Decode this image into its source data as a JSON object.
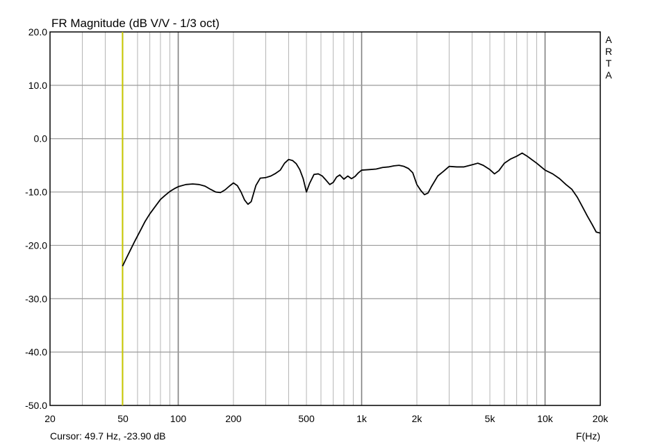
{
  "chart_data": {
    "type": "line",
    "title": "FR Magnitude (dB V/V - 1/3 oct)",
    "brand": "ARTA",
    "xlabel": "F(Hz)",
    "xscale": "log",
    "xlim": [
      20,
      20000
    ],
    "ylim": [
      -50,
      20
    ],
    "grid": true,
    "x_ticks": [
      {
        "value": 20,
        "label": "20"
      },
      {
        "value": 50,
        "label": "50"
      },
      {
        "value": 100,
        "label": "100"
      },
      {
        "value": 200,
        "label": "200"
      },
      {
        "value": 500,
        "label": "500"
      },
      {
        "value": 1000,
        "label": "1k"
      },
      {
        "value": 2000,
        "label": "2k"
      },
      {
        "value": 5000,
        "label": "5k"
      },
      {
        "value": 10000,
        "label": "10k"
      },
      {
        "value": 20000,
        "label": "20k"
      }
    ],
    "y_ticks": [
      {
        "value": 20,
        "label": "20.0"
      },
      {
        "value": 10,
        "label": "10.0"
      },
      {
        "value": 0,
        "label": "0.0"
      },
      {
        "value": -10,
        "label": "-10.0"
      },
      {
        "value": -20,
        "label": "-20.0"
      },
      {
        "value": -30,
        "label": "-30.0"
      },
      {
        "value": -40,
        "label": "-40.0"
      },
      {
        "value": -50,
        "label": "-50.0"
      }
    ],
    "cursor": {
      "frequency_hz": 49.7,
      "label": "Cursor: 49.7 Hz, -23.90 dB",
      "color": "#c8c800"
    },
    "series": [
      {
        "color": "#000000",
        "x": [
          49.7,
          52,
          55,
          58,
          62,
          66,
          70,
          75,
          80,
          85,
          90,
          95,
          100,
          110,
          120,
          130,
          140,
          150,
          160,
          170,
          180,
          190,
          200,
          210,
          220,
          230,
          240,
          250,
          265,
          280,
          300,
          320,
          340,
          360,
          380,
          400,
          420,
          440,
          460,
          480,
          500,
          520,
          550,
          580,
          610,
          640,
          670,
          700,
          730,
          760,
          800,
          840,
          880,
          920,
          960,
          1000,
          1100,
          1200,
          1300,
          1400,
          1500,
          1600,
          1700,
          1800,
          1900,
          2000,
          2100,
          2200,
          2300,
          2400,
          2600,
          2800,
          3000,
          3300,
          3600,
          4000,
          4300,
          4600,
          5000,
          5300,
          5600,
          6000,
          6500,
          7000,
          7500,
          8000,
          9000,
          10000,
          11000,
          12000,
          13000,
          14000,
          15000,
          16000,
          17000,
          18000,
          19000,
          20000
        ],
        "y": [
          -23.9,
          -22.5,
          -20.8,
          -19.2,
          -17.3,
          -15.5,
          -14.1,
          -12.7,
          -11.4,
          -10.6,
          -9.9,
          -9.4,
          -9.0,
          -8.6,
          -8.5,
          -8.6,
          -8.9,
          -9.5,
          -10.0,
          -10.1,
          -9.6,
          -8.9,
          -8.3,
          -8.8,
          -10.0,
          -11.5,
          -12.3,
          -11.8,
          -8.8,
          -7.4,
          -7.3,
          -7.0,
          -6.5,
          -5.9,
          -4.6,
          -3.9,
          -4.1,
          -4.7,
          -5.8,
          -7.5,
          -10.0,
          -8.4,
          -6.7,
          -6.6,
          -7.0,
          -7.8,
          -8.6,
          -8.2,
          -7.2,
          -6.8,
          -7.6,
          -7.0,
          -7.5,
          -7.1,
          -6.4,
          -5.9,
          -5.8,
          -5.7,
          -5.4,
          -5.3,
          -5.1,
          -5.0,
          -5.2,
          -5.6,
          -6.4,
          -8.6,
          -9.7,
          -10.5,
          -10.2,
          -9.0,
          -7.0,
          -6.1,
          -5.2,
          -5.3,
          -5.3,
          -4.9,
          -4.6,
          -5.0,
          -5.8,
          -6.6,
          -6.0,
          -4.6,
          -3.8,
          -3.3,
          -2.7,
          -3.3,
          -4.6,
          -5.9,
          -6.6,
          -7.5,
          -8.6,
          -9.5,
          -11.0,
          -12.8,
          -14.5,
          -16.0,
          -17.5,
          -17.7
        ]
      }
    ]
  }
}
